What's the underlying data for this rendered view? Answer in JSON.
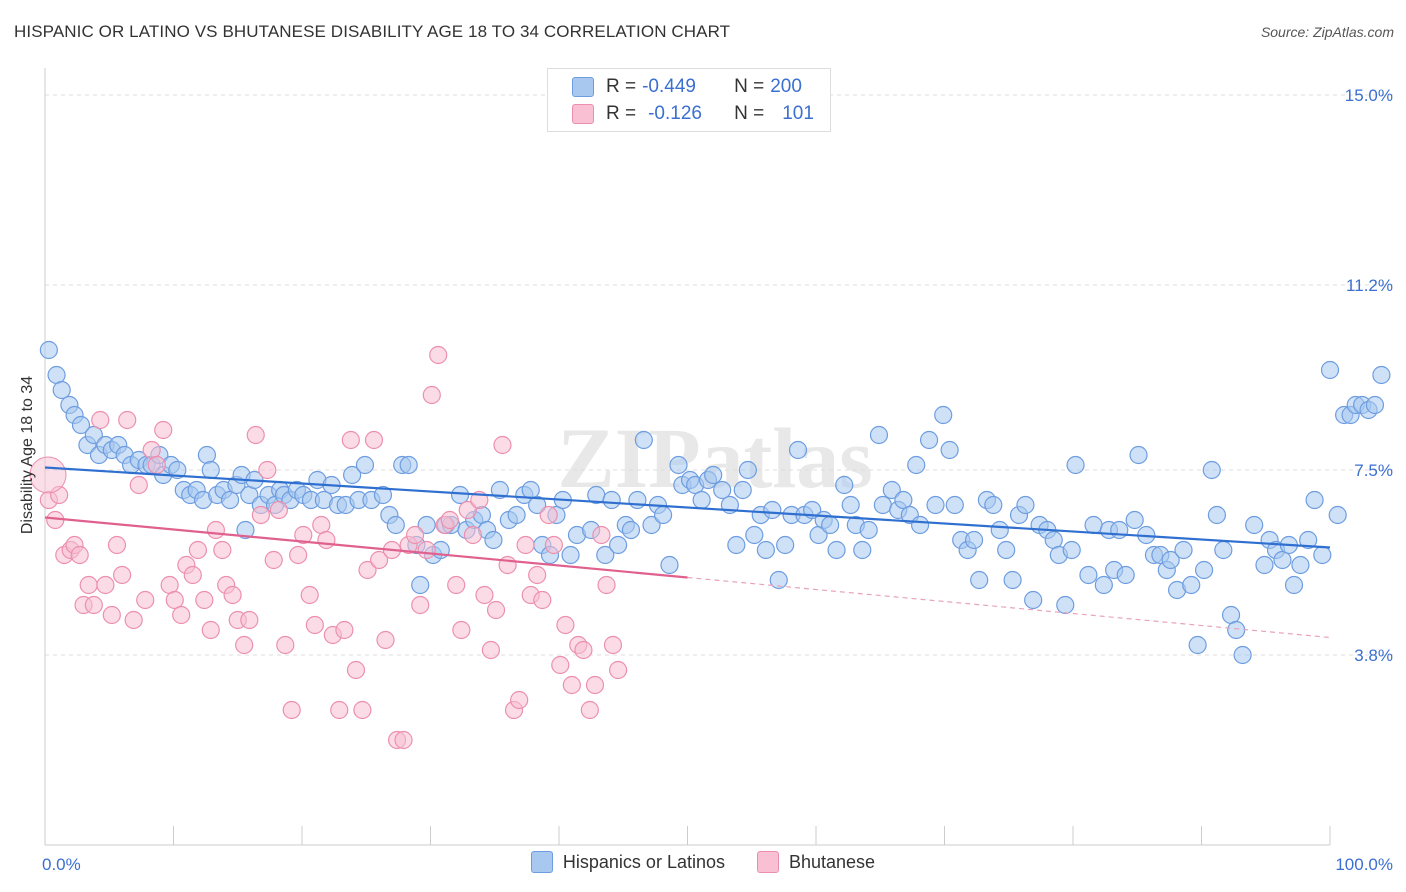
{
  "title": "HISPANIC OR LATINO VS BHUTANESE DISABILITY AGE 18 TO 34 CORRELATION CHART",
  "source": "Source: ZipAtlas.com",
  "watermark": "ZIPatlas",
  "legend": {
    "r_label": "R =",
    "n_label": "N =",
    "rows": [
      {
        "r": "-0.449",
        "n": "200",
        "color": "#a8c8f0",
        "border": "#6d9de0"
      },
      {
        "r": "-0.126",
        "n": "101",
        "color": "#f8c0d2",
        "border": "#ec8fae"
      }
    ]
  },
  "chart_data": {
    "type": "scatter",
    "xlabel": "",
    "ylabel": "Disability Age 18 to 34",
    "xlim": [
      0,
      100
    ],
    "ylim": [
      0,
      15.3
    ],
    "x_tick_labels": [
      "0.0%",
      "100.0%"
    ],
    "y_ticks": [
      3.8,
      7.5,
      11.2,
      15.0
    ],
    "y_tick_labels": [
      "3.8%",
      "7.5%",
      "11.2%",
      "15.0%"
    ],
    "grid": "horizontal dashed",
    "legend_position": "top-center",
    "series": [
      {
        "name": "Hispanics or Latinos",
        "color": "#6d9de0",
        "fill": "#a8c8f0",
        "trend": {
          "x0": 0,
          "y0": 7.55,
          "x1": 100,
          "y1": 5.95
        },
        "points": [
          [
            0.3,
            9.9
          ],
          [
            0.9,
            9.4
          ],
          [
            1.3,
            9.1
          ],
          [
            1.9,
            8.8
          ],
          [
            2.3,
            8.6
          ],
          [
            2.8,
            8.4
          ],
          [
            3.3,
            8.0
          ],
          [
            3.8,
            8.2
          ],
          [
            4.2,
            7.8
          ],
          [
            4.7,
            8.0
          ],
          [
            5.2,
            7.9
          ],
          [
            5.7,
            8.0
          ],
          [
            6.2,
            7.8
          ],
          [
            6.7,
            7.6
          ],
          [
            7.3,
            7.7
          ],
          [
            7.9,
            7.6
          ],
          [
            8.3,
            7.6
          ],
          [
            8.9,
            7.8
          ],
          [
            9.2,
            7.4
          ],
          [
            9.8,
            7.6
          ],
          [
            10.3,
            7.5
          ],
          [
            10.8,
            7.1
          ],
          [
            11.3,
            7.0
          ],
          [
            11.8,
            7.1
          ],
          [
            12.3,
            6.9
          ],
          [
            12.6,
            7.8
          ],
          [
            12.9,
            7.5
          ],
          [
            13.4,
            7.0
          ],
          [
            13.9,
            7.1
          ],
          [
            14.4,
            6.9
          ],
          [
            14.9,
            7.2
          ],
          [
            15.3,
            7.4
          ],
          [
            15.6,
            6.3
          ],
          [
            15.9,
            7.0
          ],
          [
            16.3,
            7.3
          ],
          [
            16.8,
            6.8
          ],
          [
            17.4,
            7.0
          ],
          [
            17.9,
            6.8
          ],
          [
            18.3,
            7.1
          ],
          [
            18.6,
            7.0
          ],
          [
            19.1,
            6.9
          ],
          [
            19.6,
            7.1
          ],
          [
            20.1,
            7.0
          ],
          [
            20.7,
            6.9
          ],
          [
            21.2,
            7.3
          ],
          [
            21.7,
            6.9
          ],
          [
            22.3,
            7.2
          ],
          [
            22.8,
            6.8
          ],
          [
            23.4,
            6.8
          ],
          [
            23.9,
            7.4
          ],
          [
            24.4,
            6.9
          ],
          [
            24.9,
            7.6
          ],
          [
            25.4,
            6.9
          ],
          [
            26.3,
            7.0
          ],
          [
            26.8,
            6.6
          ],
          [
            27.3,
            6.4
          ],
          [
            27.8,
            7.6
          ],
          [
            28.3,
            7.6
          ],
          [
            28.9,
            6.0
          ],
          [
            29.2,
            5.2
          ],
          [
            29.7,
            6.4
          ],
          [
            30.2,
            5.8
          ],
          [
            30.8,
            5.9
          ],
          [
            31.2,
            6.4
          ],
          [
            31.6,
            6.4
          ],
          [
            32.3,
            7.0
          ],
          [
            32.8,
            6.3
          ],
          [
            33.4,
            6.5
          ],
          [
            34.0,
            6.6
          ],
          [
            34.4,
            6.3
          ],
          [
            34.9,
            6.1
          ],
          [
            35.4,
            7.1
          ],
          [
            36.1,
            6.5
          ],
          [
            36.7,
            6.6
          ],
          [
            37.3,
            7.0
          ],
          [
            37.8,
            7.1
          ],
          [
            38.3,
            6.8
          ],
          [
            38.7,
            6.0
          ],
          [
            39.3,
            5.8
          ],
          [
            39.8,
            6.6
          ],
          [
            40.3,
            6.9
          ],
          [
            40.9,
            5.8
          ],
          [
            41.4,
            6.2
          ],
          [
            42.5,
            6.3
          ],
          [
            42.9,
            7.0
          ],
          [
            43.6,
            5.8
          ],
          [
            44.1,
            6.9
          ],
          [
            44.6,
            6.0
          ],
          [
            45.2,
            6.4
          ],
          [
            45.6,
            6.3
          ],
          [
            46.1,
            6.9
          ],
          [
            46.6,
            8.1
          ],
          [
            47.2,
            6.4
          ],
          [
            47.7,
            6.8
          ],
          [
            48.1,
            6.6
          ],
          [
            48.6,
            5.6
          ],
          [
            49.3,
            7.6
          ],
          [
            49.6,
            7.2
          ],
          [
            50.2,
            7.3
          ],
          [
            50.6,
            7.2
          ],
          [
            51.1,
            6.9
          ],
          [
            51.6,
            7.3
          ],
          [
            52.0,
            7.4
          ],
          [
            52.7,
            7.1
          ],
          [
            53.3,
            6.8
          ],
          [
            53.8,
            6.0
          ],
          [
            54.3,
            7.1
          ],
          [
            54.7,
            7.5
          ],
          [
            55.2,
            6.2
          ],
          [
            55.7,
            6.6
          ],
          [
            56.1,
            5.9
          ],
          [
            56.6,
            6.7
          ],
          [
            57.1,
            5.3
          ],
          [
            57.6,
            6.0
          ],
          [
            58.1,
            6.6
          ],
          [
            58.6,
            7.9
          ],
          [
            59.1,
            6.6
          ],
          [
            59.7,
            6.7
          ],
          [
            60.2,
            6.2
          ],
          [
            60.6,
            6.5
          ],
          [
            61.1,
            6.4
          ],
          [
            61.6,
            5.9
          ],
          [
            62.2,
            7.2
          ],
          [
            62.7,
            6.8
          ],
          [
            63.1,
            6.4
          ],
          [
            63.6,
            5.9
          ],
          [
            64.1,
            6.3
          ],
          [
            64.9,
            8.2
          ],
          [
            65.2,
            6.8
          ],
          [
            65.9,
            7.1
          ],
          [
            66.4,
            6.7
          ],
          [
            66.8,
            6.9
          ],
          [
            67.3,
            6.6
          ],
          [
            67.8,
            7.6
          ],
          [
            68.1,
            6.4
          ],
          [
            68.8,
            8.1
          ],
          [
            69.3,
            6.8
          ],
          [
            69.9,
            8.6
          ],
          [
            70.4,
            7.9
          ],
          [
            70.8,
            6.8
          ],
          [
            71.3,
            6.1
          ],
          [
            71.8,
            5.9
          ],
          [
            72.3,
            6.1
          ],
          [
            72.7,
            5.3
          ],
          [
            73.3,
            6.9
          ],
          [
            73.8,
            6.8
          ],
          [
            74.3,
            6.3
          ],
          [
            74.8,
            5.9
          ],
          [
            75.3,
            5.3
          ],
          [
            75.8,
            6.6
          ],
          [
            76.3,
            6.8
          ],
          [
            76.9,
            4.9
          ],
          [
            77.4,
            6.4
          ],
          [
            78.0,
            6.3
          ],
          [
            78.5,
            6.1
          ],
          [
            78.9,
            5.8
          ],
          [
            79.4,
            4.8
          ],
          [
            79.9,
            5.9
          ],
          [
            80.2,
            7.6
          ],
          [
            81.2,
            5.4
          ],
          [
            81.6,
            6.4
          ],
          [
            82.4,
            5.2
          ],
          [
            82.8,
            6.3
          ],
          [
            83.2,
            5.5
          ],
          [
            83.6,
            6.3
          ],
          [
            84.1,
            5.4
          ],
          [
            84.8,
            6.5
          ],
          [
            85.1,
            7.8
          ],
          [
            85.7,
            6.2
          ],
          [
            86.3,
            5.8
          ],
          [
            86.8,
            5.8
          ],
          [
            87.3,
            5.5
          ],
          [
            87.6,
            5.7
          ],
          [
            88.1,
            5.1
          ],
          [
            88.6,
            5.9
          ],
          [
            89.2,
            5.2
          ],
          [
            89.7,
            4.0
          ],
          [
            90.2,
            5.5
          ],
          [
            90.8,
            7.5
          ],
          [
            91.2,
            6.6
          ],
          [
            91.7,
            5.9
          ],
          [
            92.3,
            4.6
          ],
          [
            92.7,
            4.3
          ],
          [
            93.2,
            3.8
          ],
          [
            94.1,
            6.4
          ],
          [
            94.9,
            5.6
          ],
          [
            95.3,
            6.1
          ],
          [
            95.8,
            5.9
          ],
          [
            96.3,
            5.7
          ],
          [
            96.8,
            6.0
          ],
          [
            97.2,
            5.2
          ],
          [
            97.7,
            5.6
          ],
          [
            98.3,
            6.1
          ],
          [
            98.8,
            6.9
          ],
          [
            99.4,
            5.8
          ],
          [
            100.0,
            9.5
          ],
          [
            100.6,
            6.6
          ],
          [
            101.1,
            8.6
          ],
          [
            101.6,
            8.6
          ],
          [
            102.0,
            8.8
          ],
          [
            102.5,
            8.8
          ],
          [
            103.0,
            8.7
          ],
          [
            103.5,
            8.8
          ],
          [
            104.0,
            9.4
          ]
        ]
      },
      {
        "name": "Bhutanese",
        "color": "#ec8fae",
        "fill": "#f8c0d2",
        "trend": {
          "x0": 0,
          "y0": 6.55,
          "x1": 50,
          "y1": 5.35,
          "x_ext": 100,
          "y_ext": 4.15
        },
        "points": [
          [
            0.3,
            6.9
          ],
          [
            0.8,
            6.5
          ],
          [
            1.1,
            7.0
          ],
          [
            1.5,
            5.8
          ],
          [
            2.0,
            5.9
          ],
          [
            2.3,
            6.0
          ],
          [
            2.7,
            5.8
          ],
          [
            3.0,
            4.8
          ],
          [
            3.4,
            5.2
          ],
          [
            3.8,
            4.8
          ],
          [
            4.3,
            8.5
          ],
          [
            4.7,
            5.2
          ],
          [
            5.2,
            4.6
          ],
          [
            5.6,
            6.0
          ],
          [
            6.0,
            5.4
          ],
          [
            6.4,
            8.5
          ],
          [
            6.9,
            4.5
          ],
          [
            7.3,
            7.2
          ],
          [
            7.8,
            4.9
          ],
          [
            8.3,
            7.9
          ],
          [
            8.7,
            7.6
          ],
          [
            9.2,
            8.3
          ],
          [
            9.7,
            5.2
          ],
          [
            10.1,
            4.9
          ],
          [
            10.6,
            4.6
          ],
          [
            11.0,
            5.6
          ],
          [
            11.5,
            5.4
          ],
          [
            11.9,
            5.9
          ],
          [
            12.4,
            4.9
          ],
          [
            12.9,
            4.3
          ],
          [
            13.3,
            6.3
          ],
          [
            13.8,
            5.9
          ],
          [
            14.1,
            5.2
          ],
          [
            14.6,
            5.0
          ],
          [
            15.0,
            4.5
          ],
          [
            15.5,
            4.0
          ],
          [
            15.9,
            4.5
          ],
          [
            16.4,
            8.2
          ],
          [
            16.8,
            6.6
          ],
          [
            17.3,
            7.5
          ],
          [
            17.8,
            5.7
          ],
          [
            18.2,
            6.7
          ],
          [
            18.7,
            4.0
          ],
          [
            19.2,
            2.7
          ],
          [
            19.7,
            5.8
          ],
          [
            20.1,
            6.2
          ],
          [
            20.6,
            5.0
          ],
          [
            21.0,
            4.4
          ],
          [
            21.5,
            6.4
          ],
          [
            21.9,
            6.1
          ],
          [
            22.4,
            4.2
          ],
          [
            22.9,
            2.7
          ],
          [
            23.3,
            4.3
          ],
          [
            23.8,
            8.1
          ],
          [
            24.2,
            3.5
          ],
          [
            24.7,
            2.7
          ],
          [
            25.1,
            5.5
          ],
          [
            25.6,
            8.1
          ],
          [
            26.0,
            5.7
          ],
          [
            26.5,
            4.1
          ],
          [
            27.0,
            5.9
          ],
          [
            27.4,
            2.1
          ],
          [
            27.9,
            2.1
          ],
          [
            28.3,
            6.0
          ],
          [
            28.8,
            6.2
          ],
          [
            29.2,
            4.8
          ],
          [
            29.7,
            5.9
          ],
          [
            30.1,
            9.0
          ],
          [
            30.6,
            9.8
          ],
          [
            31.1,
            6.4
          ],
          [
            31.5,
            6.5
          ],
          [
            32.0,
            5.2
          ],
          [
            32.4,
            4.3
          ],
          [
            32.9,
            6.7
          ],
          [
            33.3,
            6.2
          ],
          [
            33.8,
            6.9
          ],
          [
            34.2,
            5.0
          ],
          [
            34.7,
            3.9
          ],
          [
            35.1,
            4.7
          ],
          [
            35.6,
            8.0
          ],
          [
            36.0,
            5.6
          ],
          [
            36.5,
            2.7
          ],
          [
            36.9,
            2.9
          ],
          [
            37.4,
            6.0
          ],
          [
            37.8,
            5.0
          ],
          [
            38.3,
            5.4
          ],
          [
            38.7,
            4.9
          ],
          [
            39.2,
            6.6
          ],
          [
            39.6,
            6.0
          ],
          [
            40.1,
            3.6
          ],
          [
            40.5,
            4.4
          ],
          [
            41.0,
            3.2
          ],
          [
            41.5,
            4.0
          ],
          [
            41.9,
            3.9
          ],
          [
            42.4,
            2.7
          ],
          [
            42.8,
            3.2
          ],
          [
            43.3,
            6.2
          ],
          [
            43.7,
            5.2
          ],
          [
            44.2,
            4.0
          ],
          [
            44.6,
            3.5
          ]
        ]
      }
    ]
  },
  "bottom_legend": [
    "Hispanics or Latinos",
    "Bhutanese"
  ]
}
